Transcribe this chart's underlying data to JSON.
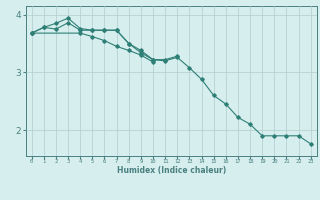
{
  "x": [
    0,
    1,
    2,
    3,
    4,
    5,
    6,
    7,
    8,
    9,
    10,
    11,
    12,
    13,
    14,
    15,
    16,
    17,
    18,
    19,
    20,
    21,
    22,
    23
  ],
  "line1": [
    3.68,
    3.78,
    3.85,
    3.94,
    3.76,
    3.73,
    3.73,
    3.73,
    3.5,
    3.38,
    3.22,
    3.22,
    3.28,
    null,
    null,
    null,
    null,
    null,
    null,
    null,
    null,
    null,
    null,
    null
  ],
  "line2": [
    3.68,
    3.78,
    3.75,
    3.86,
    3.73,
    3.73,
    3.73,
    3.73,
    3.5,
    3.34,
    3.22,
    3.2,
    3.26,
    3.08,
    2.88,
    2.6,
    2.45,
    2.22,
    2.1,
    1.9,
    1.9,
    1.9,
    1.9,
    1.76
  ],
  "line3": [
    3.68,
    null,
    null,
    null,
    3.68,
    3.62,
    3.55,
    3.45,
    3.38,
    3.3,
    3.18,
    null,
    null,
    null,
    null,
    null,
    null,
    null,
    null,
    null,
    null,
    null,
    null,
    null
  ],
  "color": "#2e7f76",
  "bg_color": "#d7eeee",
  "grid_color": "#b0cccc",
  "axis_color": "#4a8080",
  "ylabel_ticks": [
    2,
    3,
    4
  ],
  "ylim": [
    1.55,
    4.15
  ],
  "xlim": [
    -0.5,
    23.5
  ],
  "xlabel": "Humidex (Indice chaleur)"
}
